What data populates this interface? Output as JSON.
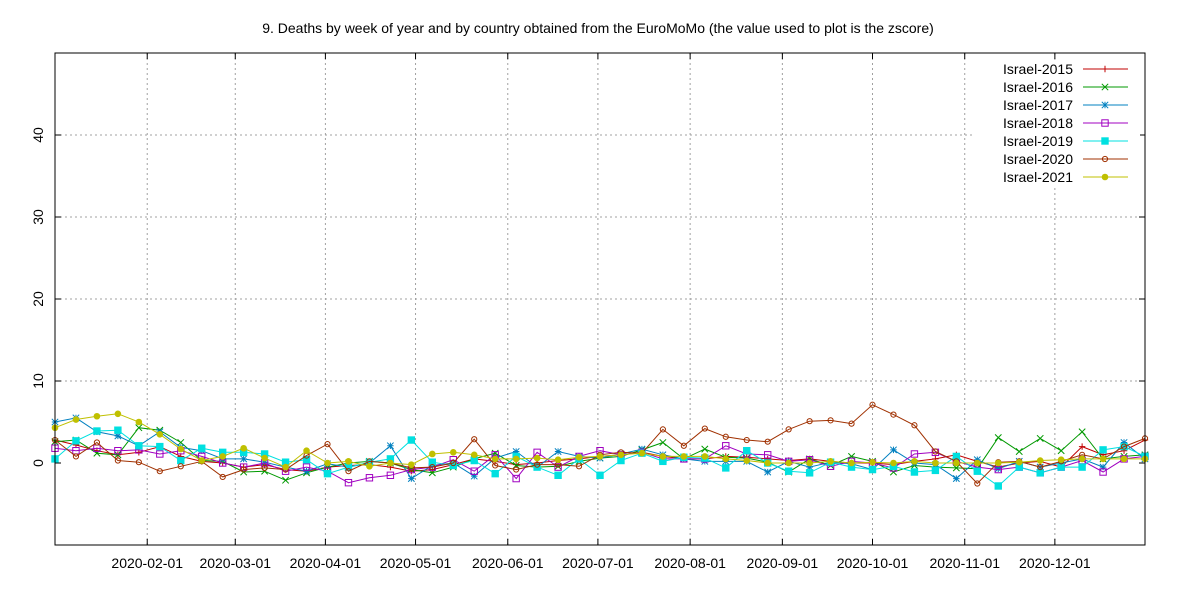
{
  "chart_data": {
    "type": "line",
    "title": "9. Deaths by week of year and by country obtained from the EuroMoMo (the value used to plot is the zscore)",
    "xlabel": "",
    "ylabel": "",
    "x_unit": "week",
    "xlim": [
      1,
      53
    ],
    "ylim": [
      -10,
      50
    ],
    "x_ticks": [
      {
        "label": "2020-02-01",
        "week": 5.4
      },
      {
        "label": "2020-03-01",
        "week": 9.6
      },
      {
        "label": "2020-04-01",
        "week": 13.9
      },
      {
        "label": "2020-05-01",
        "week": 18.2
      },
      {
        "label": "2020-06-01",
        "week": 22.6
      },
      {
        "label": "2020-07-01",
        "week": 26.9
      },
      {
        "label": "2020-08-01",
        "week": 31.3
      },
      {
        "label": "2020-09-01",
        "week": 35.7
      },
      {
        "label": "2020-10-01",
        "week": 40.0
      },
      {
        "label": "2020-11-01",
        "week": 44.4
      },
      {
        "label": "2020-12-01",
        "week": 48.7
      }
    ],
    "y_ticks": [
      0,
      10,
      20,
      30,
      40
    ],
    "y_tick_labels": [
      "0",
      "10",
      "20",
      "30",
      "40"
    ],
    "grid": true,
    "legend_position": "top-right",
    "x": [
      1,
      2,
      3,
      4,
      5,
      6,
      7,
      8,
      9,
      10,
      11,
      12,
      13,
      14,
      15,
      16,
      17,
      18,
      19,
      20,
      21,
      22,
      23,
      24,
      25,
      26,
      27,
      28,
      29,
      30,
      31,
      32,
      33,
      34,
      35,
      36,
      37,
      38,
      39,
      40,
      41,
      42,
      43,
      44,
      45,
      46,
      47,
      48,
      49,
      50,
      51,
      52,
      53
    ],
    "series": [
      {
        "name": "Israel-2015",
        "color": "#c00000",
        "marker": "plus",
        "values": [
          2.8,
          2.2,
          1.5,
          1.0,
          1.3,
          2.0,
          0.8,
          0.2,
          0.0,
          -0.5,
          -0.2,
          -0.8,
          -1.0,
          -0.5,
          -0.3,
          -0.2,
          -0.5,
          -1.0,
          -0.8,
          -0.2,
          0.5,
          0.2,
          -0.2,
          0.0,
          0.3,
          0.5,
          0.8,
          1.0,
          1.3,
          0.8,
          0.5,
          0.5,
          0.8,
          0.7,
          0.5,
          0.3,
          0.5,
          0.2,
          0.0,
          0.0,
          -0.2,
          0.2,
          0.5,
          1.0,
          0.2,
          -0.5,
          0.0,
          0.2,
          -0.5,
          2.0,
          1.0,
          1.5,
          2.8
        ]
      },
      {
        "name": "Israel-2016",
        "color": "#009900",
        "marker": "cross",
        "values": [
          2.6,
          2.8,
          1.2,
          1.0,
          4.3,
          4.0,
          2.5,
          0.3,
          0.2,
          -1.1,
          -1.0,
          -2.1,
          -1.2,
          -0.5,
          0.0,
          0.2,
          0.0,
          -0.8,
          -1.2,
          -0.5,
          0.5,
          1.2,
          -0.3,
          -0.5,
          -0.4,
          0.2,
          0.6,
          0.8,
          1.6,
          2.5,
          0.5,
          1.7,
          0.7,
          0.6,
          0.1,
          -1.1,
          0.5,
          -0.3,
          0.8,
          0.2,
          -1.1,
          -0.3,
          -0.5,
          -0.6,
          -0.7,
          3.1,
          1.4,
          3.0,
          1.5,
          3.8,
          0.5,
          0.8,
          1.0
        ]
      },
      {
        "name": "Israel-2017",
        "color": "#0080c0",
        "marker": "star",
        "values": [
          5.0,
          5.5,
          3.8,
          3.3,
          2.1,
          3.8,
          1.9,
          1.5,
          0.5,
          0.5,
          0.1,
          -0.5,
          -1.0,
          -0.1,
          -0.5,
          0.0,
          2.1,
          -1.9,
          -0.3,
          0.0,
          -1.6,
          0.6,
          1.4,
          -0.5,
          1.4,
          0.8,
          0.6,
          1.1,
          1.7,
          1.0,
          0.5,
          0.2,
          0.2,
          0.2,
          -1.1,
          0.2,
          -0.5,
          0.1,
          -0.1,
          -0.8,
          1.6,
          0.0,
          -0.2,
          -1.9,
          0.4,
          -0.7,
          0.2,
          -0.5,
          0.0,
          0.5,
          -0.5,
          2.5,
          0.5
        ]
      },
      {
        "name": "Israel-2018",
        "color": "#a000c0",
        "marker": "square",
        "values": [
          1.8,
          1.5,
          1.8,
          1.5,
          1.6,
          1.1,
          1.5,
          0.8,
          0.0,
          -0.5,
          0.0,
          -1.0,
          -0.5,
          -1.0,
          -2.4,
          -1.8,
          -1.5,
          -0.8,
          -0.5,
          0.4,
          -1.0,
          1.0,
          -1.9,
          1.3,
          -0.5,
          0.8,
          1.5,
          1.0,
          1.3,
          0.5,
          0.5,
          0.5,
          2.1,
          1.1,
          1.0,
          0.2,
          0.4,
          -0.4,
          0.2,
          0.0,
          -0.6,
          1.1,
          1.3,
          0.2,
          -0.5,
          -0.8,
          -0.5,
          -1.2,
          -0.5,
          0.3,
          -1.1,
          0.5,
          0.8
        ]
      },
      {
        "name": "Israel-2019",
        "color": "#00e0e0",
        "marker": "filled-square",
        "values": [
          0.5,
          2.7,
          3.9,
          4.0,
          2.1,
          2.0,
          0.3,
          1.8,
          1.3,
          1.3,
          1.1,
          0.1,
          0.4,
          -1.3,
          -0.5,
          0.1,
          0.5,
          2.8,
          0.1,
          -0.3,
          0.3,
          -1.3,
          0.8,
          -0.5,
          -1.5,
          0.5,
          -1.5,
          0.3,
          1.2,
          0.2,
          0.7,
          0.6,
          -0.6,
          1.5,
          0.0,
          -1.0,
          -1.2,
          0.1,
          -0.5,
          -0.8,
          -0.4,
          -1.1,
          -0.9,
          0.8,
          -1.0,
          -2.8,
          -0.5,
          -1.2,
          -0.5,
          -0.5,
          1.6,
          2.0,
          0.8
        ]
      },
      {
        "name": "Israel-2020",
        "color": "#a03000",
        "marker": "circle",
        "values": [
          2.8,
          0.8,
          2.5,
          0.3,
          0.1,
          -1.0,
          -0.4,
          0.2,
          -1.7,
          -0.8,
          -0.6,
          -0.8,
          0.9,
          2.3,
          -1.0,
          0.2,
          0.0,
          -0.6,
          -0.5,
          0.0,
          2.9,
          -0.3,
          -0.8,
          -0.2,
          -0.2,
          -0.4,
          1.0,
          1.3,
          1.2,
          4.1,
          2.1,
          4.2,
          3.2,
          2.8,
          2.6,
          4.1,
          5.1,
          5.2,
          4.8,
          7.1,
          5.9,
          4.6,
          1.4,
          0.2,
          -2.5,
          0.1,
          0.2,
          -0.5,
          0.2,
          1.0,
          0.5,
          2.0,
          3.0
        ]
      },
      {
        "name": "Israel-2021",
        "color": "#c0c000",
        "marker": "filled-circle",
        "values": [
          4.3,
          5.3,
          5.7,
          6.0,
          5.0,
          3.5,
          1.7,
          0.3,
          0.8,
          1.8,
          0.6,
          -0.5,
          1.5,
          0.0,
          0.2,
          -0.4,
          0.0,
          -0.2,
          1.1,
          1.3,
          1.0,
          0.5,
          0.5,
          0.6,
          0.4,
          0.7,
          0.8,
          1.0,
          1.2,
          0.8,
          0.8,
          0.8,
          0.5,
          0.3,
          0.0,
          0.0,
          0.0,
          0.2,
          0.0,
          0.1,
          0.0,
          0.2,
          0.0,
          0.0,
          0.0,
          0.0,
          0.1,
          0.3,
          0.4,
          0.5,
          0.5,
          0.5,
          0.5
        ]
      }
    ]
  }
}
